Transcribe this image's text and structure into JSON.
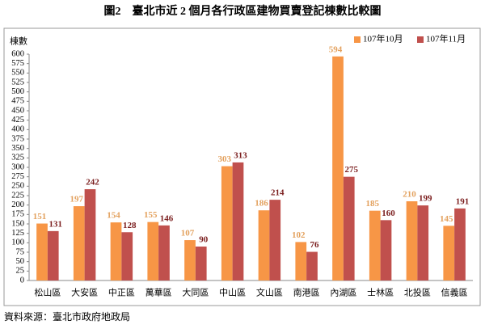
{
  "chart_data": {
    "type": "bar",
    "title": "圖2　臺北市近 2 個月各行政區建物買賣登記棟數比較圖",
    "y_label": "棟數",
    "source": "資料來源：臺北市政府地政局",
    "categories": [
      "松山區",
      "大安區",
      "中正區",
      "萬華區",
      "大同區",
      "中山區",
      "文山區",
      "南港區",
      "內湖區",
      "士林區",
      "北投區",
      "信義區"
    ],
    "series": [
      {
        "name": "107年10月",
        "color": "#f79646",
        "values": [
          151,
          197,
          154,
          155,
          107,
          303,
          186,
          102,
          594,
          185,
          210,
          145
        ]
      },
      {
        "name": "107年11月",
        "color": "#c0504d",
        "values": [
          131,
          242,
          128,
          146,
          90,
          313,
          214,
          76,
          275,
          160,
          199,
          191
        ]
      }
    ],
    "ylim": [
      0,
      600
    ],
    "yticks": [
      0,
      25,
      50,
      75,
      100,
      125,
      150,
      175,
      200,
      225,
      250,
      275,
      300,
      325,
      350,
      375,
      400,
      425,
      450,
      475,
      500,
      525,
      550,
      575,
      600
    ],
    "grid": false,
    "legend": "top-right"
  }
}
